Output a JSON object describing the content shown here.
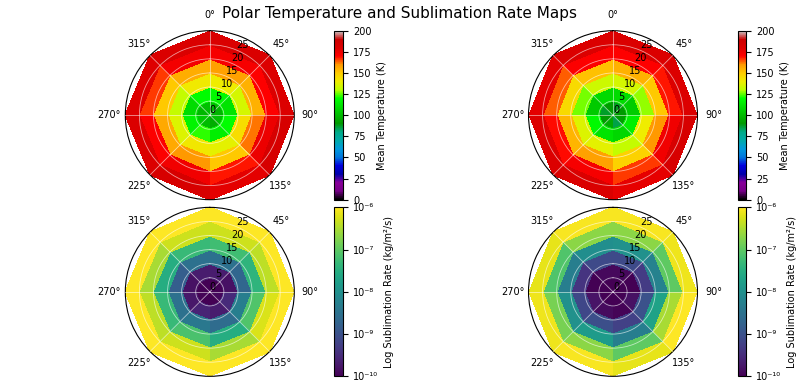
{
  "title": "Polar Temperature and Sublimation Rate Maps",
  "chart_data": [
    {
      "type": "polar_heatmap",
      "color": "nipy_spectral",
      "grid": true,
      "theta_edges": [
        0,
        45,
        90,
        135,
        180,
        225,
        270,
        315,
        360
      ],
      "r_edges": [
        0,
        5,
        10,
        15,
        20,
        25,
        30
      ],
      "ylim": [
        0,
        30
      ],
      "yticks": [
        0,
        5,
        10,
        15,
        20,
        25
      ],
      "xticks": [
        {
          "value": 0,
          "label": "0°"
        },
        {
          "value": 45,
          "label": "45°"
        },
        {
          "value": 90,
          "label": "90°"
        },
        {
          "value": 135,
          "label": "135°"
        },
        {
          "value": 225,
          "label": "225°"
        },
        {
          "value": 270,
          "label": "270°"
        },
        {
          "value": 315,
          "label": "315°"
        }
      ],
      "cells": [
        [
          100,
          98,
          102,
          96,
          100,
          104,
          99,
          101
        ],
        [
          118,
          112,
          120,
          115,
          122,
          117,
          110,
          119
        ],
        [
          140,
          135,
          145,
          138,
          142,
          136,
          132,
          141
        ],
        [
          158,
          155,
          162,
          150,
          160,
          157,
          150,
          156
        ],
        [
          172,
          170,
          175,
          168,
          174,
          171,
          166,
          173
        ],
        [
          182,
          180,
          184,
          178,
          183,
          181,
          179,
          182
        ]
      ],
      "colorbar": {
        "label": "Mean Temperature (K)",
        "range": [
          0,
          200
        ],
        "ticks": [
          0,
          25,
          50,
          75,
          100,
          125,
          150,
          175,
          200
        ]
      }
    },
    {
      "type": "polar_heatmap",
      "color": "nipy_spectral",
      "grid": true,
      "theta_edges": [
        0,
        45,
        90,
        135,
        180,
        225,
        270,
        315,
        360
      ],
      "r_edges": [
        0,
        5,
        10,
        15,
        20,
        25,
        30
      ],
      "ylim": [
        0,
        30
      ],
      "yticks": [
        0,
        5,
        10,
        15,
        20,
        25
      ],
      "xticks": [
        {
          "value": 0,
          "label": "0°"
        },
        {
          "value": 45,
          "label": "45°"
        },
        {
          "value": 90,
          "label": "90°"
        },
        {
          "value": 135,
          "label": "135°"
        },
        {
          "value": 225,
          "label": "225°"
        },
        {
          "value": 270,
          "label": "270°"
        },
        {
          "value": 315,
          "label": "315°"
        }
      ],
      "cells": [
        [
          88,
          90,
          92,
          85,
          95,
          90,
          87,
          91
        ],
        [
          110,
          105,
          115,
          108,
          112,
          118,
          104,
          109
        ],
        [
          135,
          128,
          140,
          132,
          138,
          136,
          126,
          133
        ],
        [
          155,
          150,
          160,
          148,
          158,
          154,
          146,
          152
        ],
        [
          170,
          168,
          174,
          166,
          172,
          169,
          164,
          171
        ],
        [
          181,
          180,
          183,
          177,
          182,
          180,
          178,
          181
        ]
      ],
      "colorbar": {
        "label": "Mean Temperature (K)",
        "range": [
          0,
          200
        ],
        "ticks": [
          0,
          25,
          50,
          75,
          100,
          125,
          150,
          175,
          200
        ]
      }
    },
    {
      "type": "polar_heatmap",
      "color": "viridis",
      "grid": true,
      "log": true,
      "theta_edges": [
        0,
        45,
        90,
        135,
        180,
        225,
        270,
        315,
        360
      ],
      "r_edges": [
        0,
        5,
        10,
        15,
        20,
        25,
        30
      ],
      "ylim": [
        0,
        30
      ],
      "yticks": [
        0,
        5,
        10,
        15,
        20,
        25
      ],
      "xticks": [
        {
          "value": 45,
          "label": "45°"
        },
        {
          "value": 90,
          "label": "90°"
        },
        {
          "value": 135,
          "label": "135°"
        },
        {
          "value": 225,
          "label": "225°"
        },
        {
          "value": 270,
          "label": "270°"
        },
        {
          "value": 315,
          "label": "315°"
        }
      ],
      "cells": [
        [
          1e-10,
          1e-10,
          1.2e-10,
          1e-10,
          1e-10,
          1.1e-10,
          1e-10,
          1e-10
        ],
        [
          2e-10,
          1.5e-10,
          3e-10,
          2e-10,
          2.5e-10,
          1.8e-10,
          1.5e-10,
          2e-10
        ],
        [
          3e-09,
          2e-09,
          5e-09,
          2.5e-09,
          4e-09,
          3e-09,
          1.5e-09,
          3e-09
        ],
        [
          6e-08,
          4e-08,
          8e-08,
          3e-08,
          7e-08,
          5e-08,
          3e-08,
          5e-08
        ],
        [
          5e-07,
          4e-07,
          6e-07,
          3e-07,
          5e-07,
          4e-07,
          3e-07,
          5e-07
        ],
        [
          1e-06,
          1e-06,
          1e-06,
          1e-06,
          1e-06,
          1e-06,
          1e-06,
          1e-06
        ]
      ],
      "colorbar": {
        "label": "Log Sublimation Rate (kg/m²/s)",
        "range": [
          1e-10,
          1e-06
        ],
        "ticks": [
          {
            "value": 1e-10,
            "label": "10⁻¹⁰"
          },
          {
            "value": 1e-09,
            "label": "10⁻⁹"
          },
          {
            "value": 1e-08,
            "label": "10⁻⁸"
          },
          {
            "value": 1e-07,
            "label": "10⁻⁷"
          },
          {
            "value": 1e-06,
            "label": "10⁻⁶"
          }
        ]
      }
    },
    {
      "type": "polar_heatmap",
      "color": "viridis",
      "grid": true,
      "log": true,
      "theta_edges": [
        0,
        45,
        90,
        135,
        180,
        225,
        270,
        315,
        360
      ],
      "r_edges": [
        0,
        5,
        10,
        15,
        20,
        25,
        30
      ],
      "ylim": [
        0,
        30
      ],
      "yticks": [
        0,
        5,
        10,
        15,
        20,
        25
      ],
      "xticks": [
        {
          "value": 45,
          "label": "45°"
        },
        {
          "value": 90,
          "label": "90°"
        },
        {
          "value": 135,
          "label": "135°"
        },
        {
          "value": 225,
          "label": "225°"
        },
        {
          "value": 270,
          "label": "270°"
        },
        {
          "value": 315,
          "label": "315°"
        }
      ],
      "cells": [
        [
          1e-10,
          1e-10,
          1e-10,
          1e-10,
          1e-10,
          1e-10,
          1e-10,
          1e-10
        ],
        [
          1.2e-10,
          1e-10,
          1.5e-10,
          1.1e-10,
          1.3e-10,
          1.6e-10,
          1e-10,
          1.2e-10
        ],
        [
          8e-10,
          5e-10,
          1e-09,
          6e-10,
          9e-10,
          7e-10,
          4e-10,
          8e-10
        ],
        [
          1e-08,
          6e-09,
          2e-08,
          5e-09,
          1.5e-08,
          1e-08,
          5e-09,
          9e-09
        ],
        [
          2e-07,
          1e-07,
          3e-07,
          1e-07,
          2e-07,
          1.5e-07,
          8e-08,
          2e-07
        ],
        [
          9e-07,
          8e-07,
          1e-06,
          7e-07,
          9e-07,
          8e-07,
          7e-07,
          9e-07
        ]
      ],
      "colorbar": {
        "label": "Log Sublimation Rate (kg/m²/s)",
        "range": [
          1e-10,
          1e-06
        ],
        "ticks": [
          {
            "value": 1e-10,
            "label": "10⁻¹⁰"
          },
          {
            "value": 1e-09,
            "label": "10⁻⁹"
          },
          {
            "value": 1e-08,
            "label": "10⁻⁸"
          },
          {
            "value": 1e-07,
            "label": "10⁻⁷"
          },
          {
            "value": 1e-06,
            "label": "10⁻⁶"
          }
        ]
      }
    }
  ]
}
